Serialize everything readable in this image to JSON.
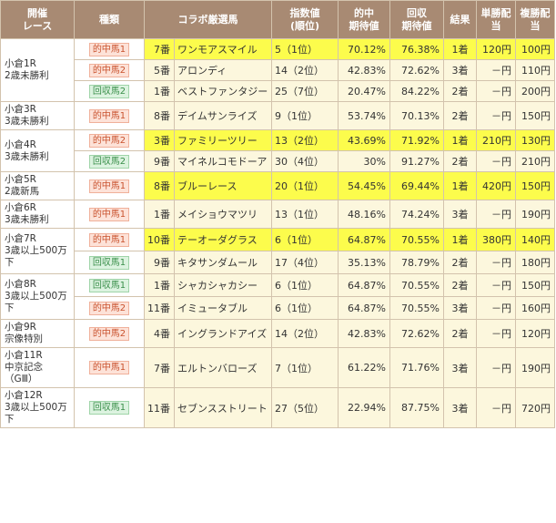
{
  "headers": {
    "race": "開催\nレース",
    "type": "種類",
    "horse": "コラボ厳選馬",
    "index": "指数値\n(順位)",
    "hitExp": "的中\n期待値",
    "retExp": "回収\n期待値",
    "result": "結果",
    "win": "単勝配当",
    "place": "複勝配当"
  },
  "races": [
    {
      "race": "小倉1R\n2歳未勝利",
      "rows": [
        {
          "type": "的中馬1",
          "kind": "hit",
          "num": "7番",
          "horse": "ワンモアスマイル",
          "index": "5（1位）",
          "hitExp": "70.12%",
          "retExp": "76.38%",
          "result": "1着",
          "win": "120円",
          "place": "100円",
          "highlight": true
        },
        {
          "type": "的中馬2",
          "kind": "hit",
          "num": "5番",
          "horse": "アロンディ",
          "index": "14（2位）",
          "hitExp": "42.83%",
          "retExp": "72.62%",
          "result": "3着",
          "win": "－円",
          "place": "110円",
          "highlight": false
        },
        {
          "type": "回収馬2",
          "kind": "ret",
          "num": "1番",
          "horse": "ベストファンタジー",
          "index": "25（7位）",
          "hitExp": "20.47%",
          "retExp": "84.22%",
          "result": "2着",
          "win": "－円",
          "place": "200円",
          "highlight": false
        }
      ]
    },
    {
      "race": "小倉3R\n3歳未勝利",
      "rows": [
        {
          "type": "的中馬1",
          "kind": "hit",
          "num": "8番",
          "horse": "デイムサンライズ",
          "index": "9（1位）",
          "hitExp": "53.74%",
          "retExp": "70.13%",
          "result": "2着",
          "win": "－円",
          "place": "150円",
          "highlight": false
        }
      ]
    },
    {
      "race": "小倉4R\n3歳未勝利",
      "rows": [
        {
          "type": "的中馬2",
          "kind": "hit",
          "num": "3番",
          "horse": "ファミリーツリー",
          "index": "13（2位）",
          "hitExp": "43.69%",
          "retExp": "71.92%",
          "result": "1着",
          "win": "210円",
          "place": "130円",
          "highlight": true
        },
        {
          "type": "回収馬2",
          "kind": "ret",
          "num": "9番",
          "horse": "マイネルコモドーア",
          "index": "30（4位）",
          "hitExp": "30%",
          "retExp": "91.27%",
          "result": "2着",
          "win": "－円",
          "place": "210円",
          "highlight": false
        }
      ]
    },
    {
      "race": "小倉5R\n2歳新馬",
      "rows": [
        {
          "type": "的中馬1",
          "kind": "hit",
          "num": "8番",
          "horse": "ブルーレース",
          "index": "20（1位）",
          "hitExp": "54.45%",
          "retExp": "69.44%",
          "result": "1着",
          "win": "420円",
          "place": "150円",
          "highlight": true
        }
      ]
    },
    {
      "race": "小倉6R\n3歳未勝利",
      "rows": [
        {
          "type": "的中馬1",
          "kind": "hit",
          "num": "1番",
          "horse": "メイショウマツリ",
          "index": "13（1位）",
          "hitExp": "48.16%",
          "retExp": "74.24%",
          "result": "3着",
          "win": "－円",
          "place": "190円",
          "highlight": false
        }
      ]
    },
    {
      "race": "小倉7R\n3歳以上500万下",
      "rows": [
        {
          "type": "的中馬1",
          "kind": "hit",
          "num": "10番",
          "horse": "テーオーダグラス",
          "index": "6（1位）",
          "hitExp": "64.87%",
          "retExp": "70.55%",
          "result": "1着",
          "win": "380円",
          "place": "140円",
          "highlight": true
        },
        {
          "type": "回収馬1",
          "kind": "ret",
          "num": "9番",
          "horse": "キタサンダムール",
          "index": "17（4位）",
          "hitExp": "35.13%",
          "retExp": "78.79%",
          "result": "2着",
          "win": "－円",
          "place": "180円",
          "highlight": false
        }
      ]
    },
    {
      "race": "小倉8R\n3歳以上500万下",
      "rows": [
        {
          "type": "回収馬1",
          "kind": "ret",
          "num": "1番",
          "horse": "シャカシャカシー",
          "index": "6（1位）",
          "hitExp": "64.87%",
          "retExp": "70.55%",
          "result": "2着",
          "win": "－円",
          "place": "150円",
          "highlight": false
        },
        {
          "type": "的中馬2",
          "kind": "hit",
          "num": "11番",
          "horse": "イミュータブル",
          "index": "6（1位）",
          "hitExp": "64.87%",
          "retExp": "70.55%",
          "result": "3着",
          "win": "－円",
          "place": "160円",
          "highlight": false
        }
      ]
    },
    {
      "race": "小倉9R\n宗像特別",
      "rows": [
        {
          "type": "的中馬2",
          "kind": "hit",
          "num": "4番",
          "horse": "イングランドアイズ",
          "index": "14（2位）",
          "hitExp": "42.83%",
          "retExp": "72.62%",
          "result": "2着",
          "win": "－円",
          "place": "120円",
          "highlight": false
        }
      ]
    },
    {
      "race": "小倉11R\n中京記念（GⅢ）",
      "rows": [
        {
          "type": "的中馬1",
          "kind": "hit",
          "num": "7番",
          "horse": "エルトンバローズ",
          "index": "7（1位）",
          "hitExp": "61.22%",
          "retExp": "71.76%",
          "result": "3着",
          "win": "－円",
          "place": "190円",
          "highlight": false
        }
      ]
    },
    {
      "race": "小倉12R\n3歳以上500万下",
      "rows": [
        {
          "type": "回収馬1",
          "kind": "ret",
          "num": "11番",
          "horse": "セブンスストリート",
          "index": "27（5位）",
          "hitExp": "22.94%",
          "retExp": "87.75%",
          "result": "3着",
          "win": "－円",
          "place": "720円",
          "highlight": false
        }
      ]
    }
  ]
}
